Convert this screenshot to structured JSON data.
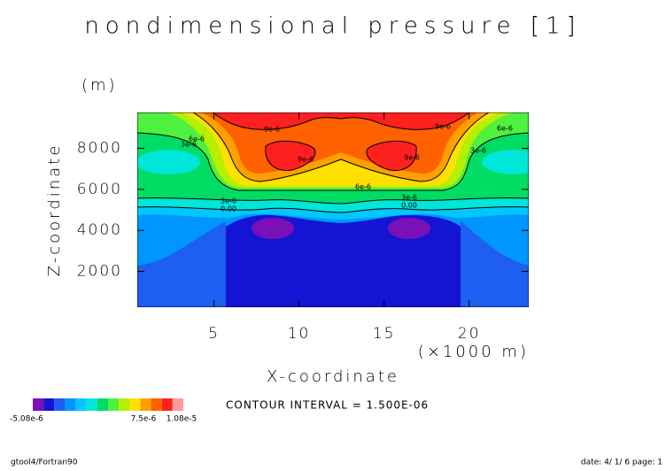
{
  "chart_data": {
    "type": "contour",
    "title": "nondimensional pressure [1]",
    "x_label": "X-coordinate",
    "x_unit": "(×1000 m)",
    "y_label": "Z-coordinate",
    "y_unit": "(m)",
    "xlim": [
      0.5,
      23.5
    ],
    "xticks": [
      5,
      10,
      15,
      20
    ],
    "ylim": [
      250,
      9750
    ],
    "yticks": [
      2000,
      4000,
      6000,
      8000
    ],
    "annotation": "CONTOUR INTERVAL = 1.500E-06",
    "contour_labels": [
      "9e-6",
      "9e-6",
      "6e-6",
      "6e-6",
      "3e-6",
      "3e-6",
      "9e-6",
      "9e-6",
      "6e-6",
      "3e-6",
      "3e-6",
      "0.00",
      "0.00"
    ],
    "colorbar": {
      "colors": [
        "#7a10b8",
        "#1414d2",
        "#1e5ef0",
        "#0096ff",
        "#00c8ff",
        "#00e6d8",
        "#00dc64",
        "#50f040",
        "#b4f000",
        "#ffe000",
        "#ffa000",
        "#ff6000",
        "#ff2020",
        "#ff9a9a"
      ],
      "labels": [
        {
          "value": -5.08e-06,
          "label": "-5.08e-6"
        },
        {
          "value": 7.5e-06,
          "label": "7.5e-6"
        },
        {
          "value": 1.08e-05,
          "label": "1.08e-5"
        }
      ]
    }
  },
  "footer": {
    "left": "gtool4/Fortran90",
    "right": "date: 4/ 1/ 6 page: 1"
  }
}
